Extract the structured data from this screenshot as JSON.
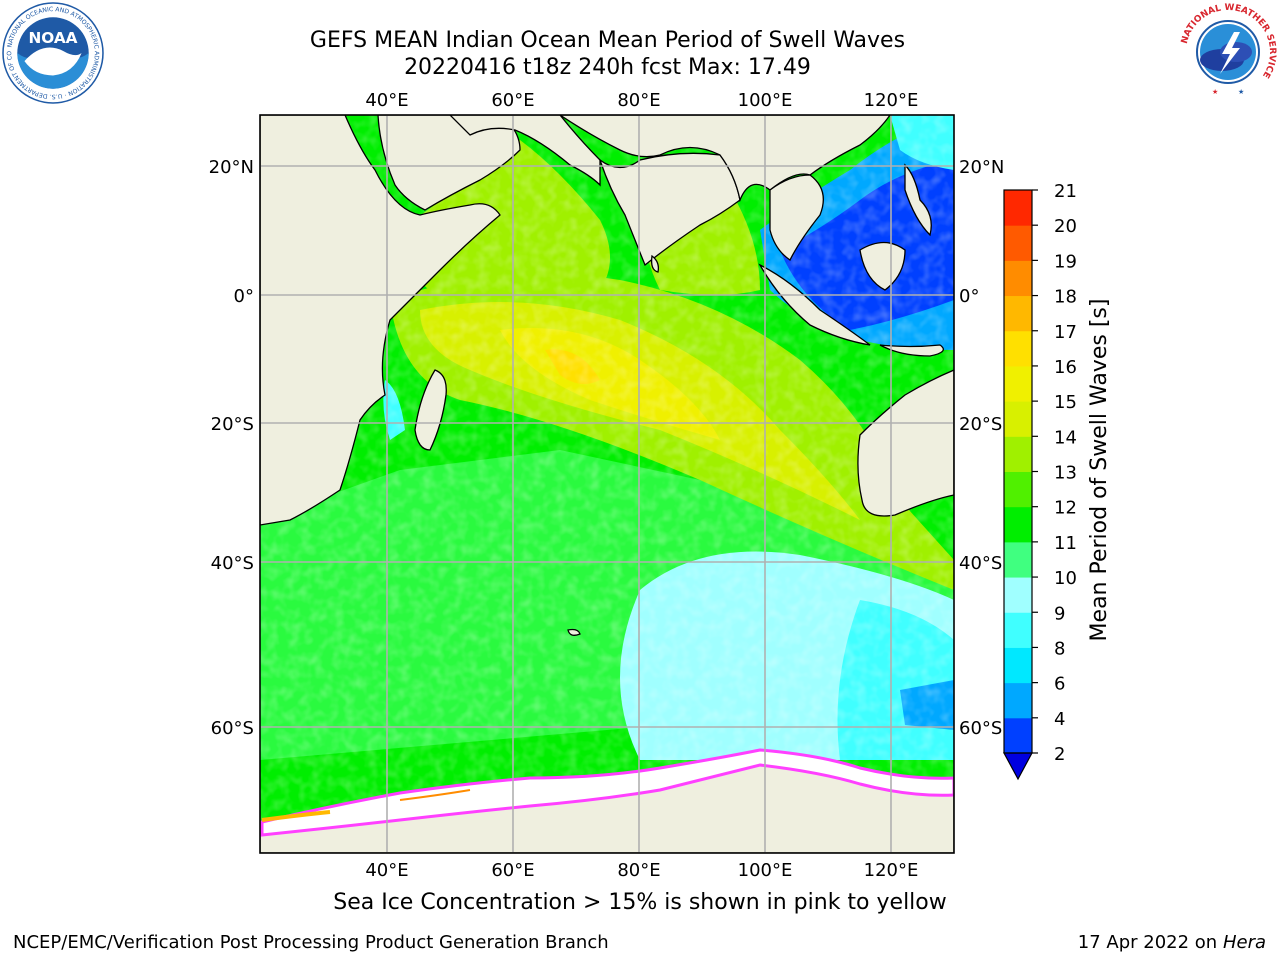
{
  "title_line1": "GEFS MEAN Indian Ocean Mean Period of Swell Waves",
  "title_line2": "20220416 t18z 240h fcst   Max: 17.49",
  "caption": "Sea Ice Concentration > 15% is shown in pink to yellow",
  "footer_left": "NCEP/EMC/Verification Post Processing Product Generation Branch",
  "footer_date": "17 Apr 2022 on ",
  "footer_machine": "Hera",
  "logos": {
    "noaa_text": "NOAA",
    "noaa_ring_text": "NATIONAL OCEANIC AND ATMOSPHERIC ADMINISTRATION · U.S. DEPARTMENT OF COMMERCE",
    "nws_ring_text": "NATIONAL WEATHER SERVICE"
  },
  "axes": {
    "lon_labels": [
      "40°E",
      "60°E",
      "80°E",
      "100°E",
      "120°E"
    ],
    "lat_labels": [
      "20°N",
      "0°",
      "20°S",
      "40°S",
      "60°S"
    ]
  },
  "colorbar": {
    "label": "Mean Period of Swell Waves [s]",
    "ticks": [
      "2",
      "4",
      "6",
      "8",
      "9",
      "10",
      "11",
      "12",
      "13",
      "14",
      "15",
      "16",
      "17",
      "18",
      "19",
      "20",
      "21"
    ],
    "colors": [
      "#0040ff",
      "#00a8ff",
      "#00e8ff",
      "#40ffff",
      "#a0ffff",
      "#40ff80",
      "#00ee00",
      "#50f000",
      "#a0f000",
      "#d8f000",
      "#f0f000",
      "#ffe000",
      "#ffb800",
      "#ff8c00",
      "#ff5a00",
      "#ff2800"
    ],
    "extend_color": "#0000e0"
  },
  "colors": {
    "land": "#efefdf",
    "ice": "#ffffff",
    "ice_edge": "#ff40ff",
    "grid": "#b0b0b0",
    "noaa_blue": "#1f5aa6",
    "nws_red": "#d8262e"
  }
}
